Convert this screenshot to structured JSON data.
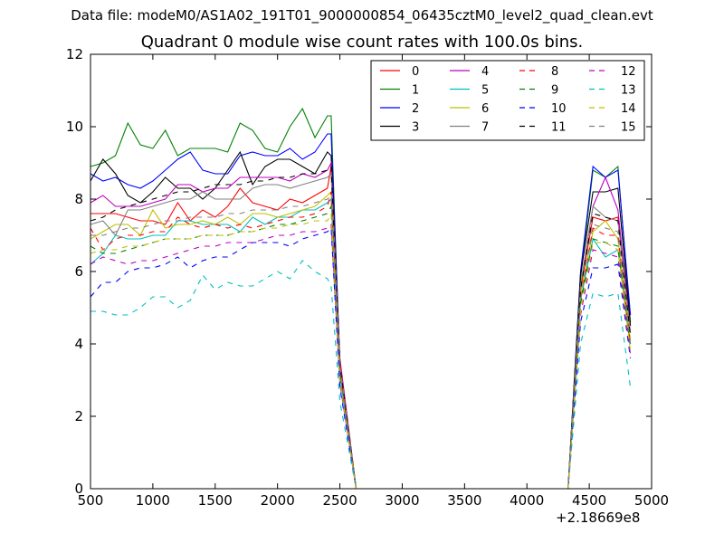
{
  "header": {
    "suptitle": "Data file: modeM0/AS1A02_191T01_9000000854_06435cztM0_level2_quad_clean.evt",
    "title": "Quadrant 0 module wise count rates with 100.0s bins."
  },
  "chart_data": {
    "type": "line",
    "title": "Quadrant 0 module wise count rates with 100.0s bins.",
    "xlabel": "",
    "ylabel": "",
    "xlim": [
      500,
      5000
    ],
    "ylim": [
      0,
      12
    ],
    "xticks": [
      "500",
      "1000",
      "1500",
      "2000",
      "2500",
      "3000",
      "3500",
      "4000",
      "4500",
      "5000"
    ],
    "yticks": [
      "0",
      "2",
      "4",
      "6",
      "8",
      "10",
      "12"
    ],
    "x_offset_label": "+2.18669e8",
    "grid": false,
    "legend_position": "top-right",
    "legend_columns": 4,
    "x": [
      500,
      600,
      700,
      800,
      900,
      1000,
      1100,
      1200,
      1300,
      1400,
      1500,
      1600,
      1700,
      1800,
      1900,
      2000,
      2100,
      2200,
      2300,
      2400,
      2430,
      2500,
      2630,
      2730,
      3000,
      3500,
      4000,
      4330,
      4430,
      4530,
      4630,
      4730,
      4830
    ],
    "series": [
      {
        "name": "0",
        "color": "#ff0000",
        "dash": "solid",
        "values": [
          7.6,
          7.6,
          7.6,
          7.5,
          7.4,
          7.4,
          7.3,
          7.9,
          7.4,
          7.7,
          7.5,
          7.8,
          8.3,
          7.9,
          7.8,
          7.7,
          8.0,
          7.9,
          8.1,
          8.3,
          8.9,
          3.6,
          0,
          0,
          0,
          0,
          0,
          0,
          5.5,
          7.5,
          7.4,
          7.5,
          4.5
        ]
      },
      {
        "name": "1",
        "color": "#008000",
        "dash": "solid",
        "values": [
          8.9,
          9.0,
          9.2,
          10.1,
          9.5,
          9.4,
          9.9,
          9.2,
          9.4,
          9.4,
          9.4,
          9.3,
          10.1,
          9.9,
          9.4,
          9.3,
          10.0,
          10.5,
          9.7,
          10.3,
          10.3,
          3.3,
          0,
          0,
          0,
          0,
          0,
          0,
          5.8,
          8.8,
          8.6,
          8.9,
          4.6
        ]
      },
      {
        "name": "2",
        "color": "#0000ff",
        "dash": "solid",
        "values": [
          8.7,
          8.5,
          8.6,
          8.4,
          8.3,
          8.5,
          8.8,
          9.1,
          9.3,
          8.8,
          8.7,
          8.7,
          9.2,
          9.3,
          9.2,
          9.2,
          9.4,
          9.1,
          9.3,
          9.8,
          9.8,
          3.5,
          0,
          0,
          0,
          0,
          0,
          0,
          6.0,
          8.9,
          8.6,
          8.8,
          4.8
        ]
      },
      {
        "name": "3",
        "color": "#000000",
        "dash": "solid",
        "values": [
          8.5,
          9.1,
          8.7,
          8.1,
          7.9,
          8.2,
          8.6,
          8.3,
          8.3,
          8.0,
          8.3,
          8.8,
          9.3,
          8.4,
          8.9,
          9.1,
          9.1,
          8.9,
          8.7,
          9.3,
          9.2,
          3.4,
          0,
          0,
          0,
          0,
          0,
          0,
          5.9,
          8.2,
          8.2,
          8.3,
          4.5
        ]
      },
      {
        "name": "4",
        "color": "#bf00bf",
        "dash": "solid",
        "values": [
          7.9,
          8.1,
          7.8,
          7.8,
          7.8,
          7.9,
          8.0,
          8.4,
          8.4,
          8.2,
          8.3,
          8.3,
          8.6,
          8.6,
          8.6,
          8.6,
          8.5,
          8.7,
          8.6,
          8.8,
          9.0,
          3.5,
          0,
          0,
          0,
          0,
          0,
          0,
          5.6,
          7.8,
          8.6,
          7.7,
          4.3
        ]
      },
      {
        "name": "5",
        "color": "#00bfbf",
        "dash": "solid",
        "values": [
          6.2,
          6.5,
          7.0,
          6.9,
          6.9,
          7.0,
          7.0,
          7.4,
          7.4,
          7.3,
          7.3,
          7.3,
          7.1,
          7.5,
          7.3,
          7.5,
          7.5,
          7.7,
          7.7,
          7.9,
          8.0,
          3.1,
          0,
          0,
          0,
          0,
          0,
          0,
          5.2,
          6.9,
          6.4,
          6.6,
          4.0
        ]
      },
      {
        "name": "6",
        "color": "#bfbf00",
        "dash": "solid",
        "values": [
          6.9,
          7.1,
          7.3,
          7.3,
          7.0,
          7.7,
          7.2,
          7.3,
          7.3,
          7.4,
          7.3,
          7.5,
          7.3,
          7.6,
          7.6,
          7.5,
          7.6,
          7.7,
          7.8,
          8.1,
          8.2,
          3.3,
          0,
          0,
          0,
          0,
          0,
          0,
          5.4,
          7.1,
          7.4,
          6.9,
          4.1
        ]
      },
      {
        "name": "7",
        "color": "#808080",
        "dash": "solid",
        "values": [
          7.3,
          7.4,
          7.0,
          7.7,
          7.7,
          7.8,
          7.9,
          8.0,
          8.0,
          8.2,
          8.0,
          8.0,
          8.0,
          8.3,
          8.4,
          8.4,
          8.3,
          8.4,
          8.5,
          8.6,
          8.7,
          3.4,
          0,
          0,
          0,
          0,
          0,
          0,
          5.6,
          7.8,
          7.5,
          7.4,
          4.3
        ]
      },
      {
        "name": "8",
        "color": "#ff0000",
        "dash": "dashed",
        "values": [
          7.2,
          6.6,
          6.9,
          7.0,
          7.0,
          7.1,
          7.1,
          7.5,
          7.3,
          7.2,
          7.3,
          7.2,
          7.3,
          7.2,
          7.3,
          7.4,
          7.5,
          7.5,
          7.6,
          7.8,
          8.2,
          3.2,
          0,
          0,
          0,
          0,
          0,
          0,
          5.2,
          7.2,
          7.0,
          7.0,
          4.0
        ]
      },
      {
        "name": "9",
        "color": "#008000",
        "dash": "dashed",
        "values": [
          6.7,
          6.5,
          6.5,
          6.6,
          6.7,
          6.8,
          6.9,
          6.9,
          6.9,
          7.0,
          7.0,
          7.0,
          7.1,
          7.1,
          7.2,
          7.3,
          7.3,
          7.4,
          7.5,
          7.6,
          7.8,
          3.1,
          0,
          0,
          0,
          0,
          0,
          0,
          5.1,
          6.9,
          6.8,
          6.7,
          3.9
        ]
      },
      {
        "name": "10",
        "color": "#0000ff",
        "dash": "dashed",
        "values": [
          5.3,
          5.7,
          5.7,
          6.0,
          6.1,
          6.1,
          6.2,
          6.4,
          6.1,
          6.3,
          6.4,
          6.4,
          6.6,
          6.8,
          6.8,
          6.8,
          6.7,
          6.9,
          7.0,
          7.1,
          7.2,
          2.8,
          0,
          0,
          0,
          0,
          0,
          0,
          4.6,
          6.1,
          6.1,
          6.2,
          3.6
        ]
      },
      {
        "name": "11",
        "color": "#000000",
        "dash": "dashed",
        "values": [
          7.4,
          7.5,
          7.7,
          7.8,
          7.9,
          8.0,
          8.1,
          8.2,
          8.2,
          8.3,
          8.4,
          8.4,
          8.4,
          8.5,
          8.5,
          8.6,
          8.6,
          8.7,
          8.7,
          8.8,
          8.9,
          3.4,
          0,
          0,
          0,
          0,
          0,
          0,
          5.5,
          7.6,
          7.5,
          7.4,
          4.2
        ]
      },
      {
        "name": "12",
        "color": "#bf00bf",
        "dash": "dashed",
        "values": [
          6.2,
          6.4,
          6.3,
          6.2,
          6.3,
          6.3,
          6.4,
          6.5,
          6.6,
          6.7,
          6.7,
          6.8,
          6.8,
          6.8,
          6.9,
          7.0,
          7.0,
          7.1,
          7.1,
          7.2,
          7.3,
          2.9,
          0,
          0,
          0,
          0,
          0,
          0,
          4.8,
          6.6,
          6.5,
          6.4,
          3.7
        ]
      },
      {
        "name": "13",
        "color": "#00bfbf",
        "dash": "dashed",
        "values": [
          4.9,
          4.9,
          4.8,
          4.8,
          5.0,
          5.3,
          5.3,
          5.0,
          5.2,
          5.9,
          5.5,
          5.7,
          5.6,
          5.6,
          5.8,
          6.0,
          5.8,
          6.3,
          6.0,
          5.8,
          5.6,
          2.4,
          0,
          0,
          0,
          0,
          0,
          0,
          4.0,
          5.4,
          5.3,
          5.4,
          2.8
        ]
      },
      {
        "name": "14",
        "color": "#bfbf00",
        "dash": "dashed",
        "values": [
          6.5,
          6.6,
          6.6,
          6.7,
          6.7,
          6.8,
          6.9,
          6.9,
          6.9,
          7.0,
          7.0,
          7.0,
          7.1,
          7.1,
          7.2,
          7.2,
          7.3,
          7.3,
          7.4,
          7.4,
          7.6,
          3.0,
          0,
          0,
          0,
          0,
          0,
          0,
          4.9,
          6.8,
          6.8,
          6.6,
          3.8
        ]
      },
      {
        "name": "15",
        "color": "#808080",
        "dash": "dashed",
        "values": [
          7.0,
          7.0,
          7.1,
          7.2,
          7.2,
          7.3,
          7.4,
          7.4,
          7.5,
          7.5,
          7.5,
          7.6,
          7.6,
          7.7,
          7.7,
          7.7,
          7.8,
          7.8,
          7.9,
          8.0,
          8.1,
          3.2,
          0,
          0,
          0,
          0,
          0,
          0,
          5.2,
          7.3,
          7.2,
          7.1,
          4.0
        ]
      }
    ]
  }
}
